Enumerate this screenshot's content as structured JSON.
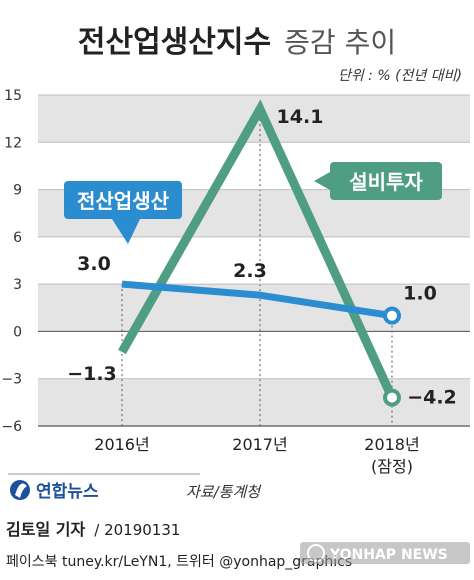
{
  "header": {
    "title_bold": "전산업생산지수",
    "title_light": "증감 추이",
    "unit": "단위 : % (전년 대비)"
  },
  "chart_data": {
    "type": "line",
    "title": "전산업생산지수 증감 추이",
    "unit": "단위 : % (전년 대비)",
    "categories": [
      "2016년",
      "2017년",
      "2018년"
    ],
    "category_sublabels": [
      "",
      "",
      "(잠정)"
    ],
    "ylim": [
      -6,
      15
    ],
    "yticks": [
      15,
      12,
      9,
      6,
      3,
      0,
      -3,
      -6
    ],
    "ytick_labels": [
      "15",
      "12",
      "9",
      "6",
      "3",
      "0",
      "−3",
      "−6"
    ],
    "grid": "alternating horizontal bands",
    "series": [
      {
        "name": "전산업생산",
        "color": "#2b8ccf",
        "values": [
          3.0,
          2.3,
          1.0
        ],
        "labels": [
          "3.0",
          "2.3",
          "1.0"
        ]
      },
      {
        "name": "설비투자",
        "color": "#4f9e84",
        "values": [
          -1.3,
          14.1,
          -4.2
        ],
        "labels": [
          "−1.3",
          "14.1",
          "−4.2"
        ]
      }
    ]
  },
  "footer": {
    "logo_text": "연합뉴스",
    "source": "자료/통계청",
    "byline": "김토일 기자",
    "date": "/ 20190131",
    "social": "페이스북 tuney.kr/LeYN1, 트위터 @yonhap_graphics",
    "watermark": "YONHAP NEWS"
  },
  "colors": {
    "band": "#e4e4e4",
    "dark": "#333333"
  }
}
